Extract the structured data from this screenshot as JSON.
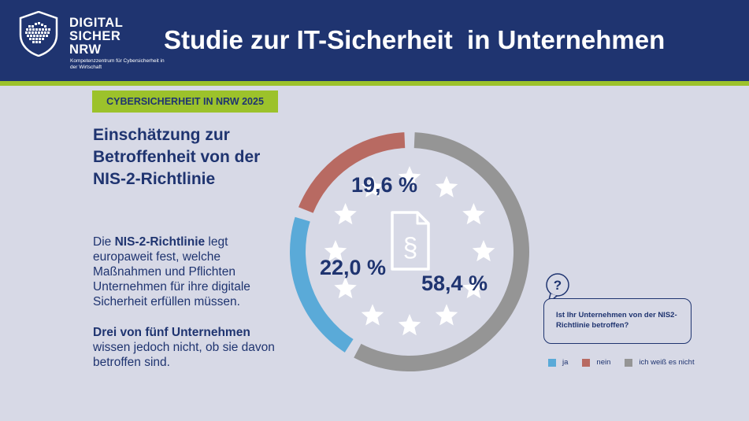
{
  "header": {
    "logo_lines": [
      "DIGITAL",
      "SICHER",
      "NRW"
    ],
    "logo_subtitle": "Kompetenzzentrum für Cybersicherheit in der Wirtschaft",
    "title": "Studie zur IT-Sicherheit  in Unternehmen"
  },
  "badge": "CYBERSICHERHEIT IN NRW 2025",
  "section_title": "Einschätzung zur Betroffenheit von der NIS-2-Richtlinie",
  "description": {
    "part1_prefix": "Die ",
    "part1_bold": "NIS-2-Richtlinie",
    "part1_suffix": " legt europaweit fest, welche Maßnahmen und Pflichten Unternehmen für ihre digitale Sicherheit erfüllen müssen.",
    "part2_bold": "Drei von fünf Unternehmen",
    "part2_suffix": " wissen jedoch nicht, ob sie davon betroffen sind."
  },
  "question": "Ist Ihr Unternehmen von der NIS2-Richtlinie betroffen?",
  "colors": {
    "navy": "#1f3470",
    "green": "#9cc22b",
    "ja": "#5aaad8",
    "nein": "#b86a62",
    "unknown": "#959595"
  },
  "chart_data": {
    "type": "pie",
    "donut": true,
    "categories": [
      "ja",
      "nein",
      "ich weiß es nicht"
    ],
    "values": [
      22.0,
      19.6,
      58.4
    ],
    "labels": [
      "22,0 %",
      "19,6 %",
      "58,4 %"
    ],
    "colors": [
      "#5aaad8",
      "#b86a62",
      "#959595"
    ],
    "legend_position": "bottom-right"
  }
}
